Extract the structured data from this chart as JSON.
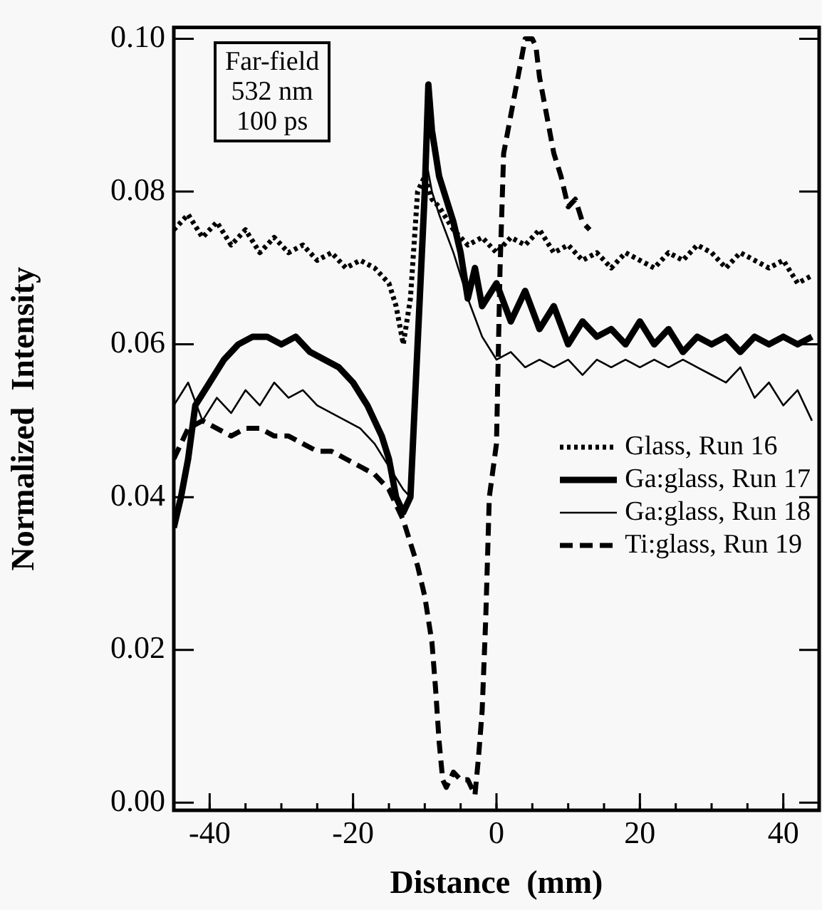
{
  "chart_data": {
    "type": "line",
    "xlabel": "Distance  (mm)",
    "ylabel": "Normalized  Intensity",
    "annotations": [
      "Far-field",
      "532 nm",
      "100 ps"
    ],
    "xlim": [
      -45,
      45
    ],
    "xticks": [
      -40,
      -20,
      0,
      20,
      40
    ],
    "ylim": [
      -0.001,
      0.1015
    ],
    "yticks": [
      {
        "value": 0,
        "label": "0.00"
      },
      {
        "value": 0.02,
        "label": "0.02"
      },
      {
        "value": 0.04,
        "label": "0.04"
      },
      {
        "value": 0.06,
        "label": "0.06"
      },
      {
        "value": 0.08,
        "label": "0.08"
      },
      {
        "value": 0.1,
        "label": "0.10"
      }
    ],
    "grid": false,
    "legend": "right",
    "marker": "none",
    "series": [
      {
        "name": "Glass, Run 16",
        "color": "#000000",
        "line_style": "dotted",
        "x": [
          -45,
          -43,
          -41,
          -39,
          -37,
          -35,
          -33,
          -31,
          -29,
          -27,
          -25,
          -23,
          -21,
          -19,
          -17,
          -15,
          -14,
          -13,
          -12,
          -11,
          -10,
          -9,
          -8,
          -6,
          -4,
          -2,
          0,
          2,
          4,
          6,
          8,
          10,
          12,
          14,
          16,
          18,
          20,
          22,
          24,
          26,
          28,
          30,
          32,
          34,
          36,
          38,
          40,
          42,
          44
        ],
        "values": [
          0.075,
          0.077,
          0.074,
          0.076,
          0.073,
          0.075,
          0.072,
          0.074,
          0.072,
          0.073,
          0.071,
          0.072,
          0.07,
          0.071,
          0.07,
          0.068,
          0.065,
          0.06,
          0.066,
          0.08,
          0.082,
          0.079,
          0.078,
          0.075,
          0.073,
          0.074,
          0.072,
          0.074,
          0.073,
          0.075,
          0.072,
          0.073,
          0.071,
          0.072,
          0.07,
          0.072,
          0.071,
          0.07,
          0.072,
          0.071,
          0.073,
          0.072,
          0.07,
          0.072,
          0.071,
          0.07,
          0.071,
          0.068,
          0.069
        ]
      },
      {
        "name": "Ga:glass, Run 17",
        "color": "#000000",
        "line_style": "solid",
        "x": [
          -45,
          -44,
          -43,
          -42,
          -40,
          -38,
          -36,
          -34,
          -32,
          -30,
          -28,
          -26,
          -24,
          -22,
          -20,
          -18,
          -16,
          -15,
          -14,
          -13,
          -12,
          -11,
          -10,
          -9.5,
          -9,
          -8,
          -7,
          -6,
          -5,
          -4,
          -3,
          -2,
          0,
          2,
          4,
          6,
          8,
          10,
          12,
          14,
          16,
          18,
          20,
          22,
          24,
          26,
          28,
          30,
          32,
          34,
          36,
          38,
          40,
          42,
          44
        ],
        "values": [
          0.036,
          0.04,
          0.045,
          0.052,
          0.055,
          0.058,
          0.06,
          0.061,
          0.061,
          0.06,
          0.061,
          0.059,
          0.058,
          0.057,
          0.055,
          0.052,
          0.048,
          0.045,
          0.04,
          0.038,
          0.04,
          0.06,
          0.08,
          0.094,
          0.088,
          0.082,
          0.079,
          0.076,
          0.072,
          0.066,
          0.07,
          0.065,
          0.068,
          0.063,
          0.067,
          0.062,
          0.065,
          0.06,
          0.063,
          0.061,
          0.062,
          0.06,
          0.063,
          0.06,
          0.062,
          0.059,
          0.061,
          0.06,
          0.061,
          0.059,
          0.061,
          0.06,
          0.061,
          0.06,
          0.061
        ]
      },
      {
        "name": "Ga:glass, Run 18",
        "color": "#000000",
        "line_style": "solid",
        "x": [
          -45,
          -43,
          -41,
          -39,
          -37,
          -35,
          -33,
          -31,
          -29,
          -27,
          -25,
          -23,
          -21,
          -19,
          -17,
          -15,
          -13,
          -12,
          -11,
          -10,
          -9,
          -8,
          -6,
          -4,
          -2,
          0,
          2,
          4,
          6,
          8,
          10,
          12,
          14,
          16,
          18,
          20,
          22,
          24,
          26,
          28,
          30,
          32,
          34,
          36,
          38,
          40,
          42,
          44
        ],
        "values": [
          0.052,
          0.055,
          0.05,
          0.053,
          0.051,
          0.054,
          0.052,
          0.055,
          0.053,
          0.054,
          0.052,
          0.051,
          0.05,
          0.049,
          0.047,
          0.044,
          0.041,
          0.04,
          0.06,
          0.085,
          0.08,
          0.077,
          0.072,
          0.066,
          0.061,
          0.058,
          0.059,
          0.057,
          0.058,
          0.057,
          0.058,
          0.056,
          0.058,
          0.057,
          0.058,
          0.057,
          0.058,
          0.057,
          0.058,
          0.057,
          0.056,
          0.055,
          0.057,
          0.053,
          0.055,
          0.052,
          0.054,
          0.05
        ]
      },
      {
        "name": "Ti:glass, Run 19",
        "color": "#000000",
        "line_style": "dashed",
        "x": [
          -45,
          -43,
          -41,
          -39,
          -37,
          -35,
          -33,
          -31,
          -29,
          -27,
          -25,
          -23,
          -21,
          -19,
          -17,
          -15,
          -13,
          -11,
          -10,
          -9,
          -8.5,
          -8,
          -7.5,
          -7,
          -6,
          -5,
          -4,
          -3,
          -2.5,
          -2,
          -1.5,
          -1,
          0,
          0.5,
          1,
          2,
          3,
          4,
          5,
          5.5,
          6,
          7,
          8,
          9,
          10,
          11,
          12,
          13
        ],
        "values": [
          0.045,
          0.049,
          0.05,
          0.049,
          0.048,
          0.049,
          0.049,
          0.048,
          0.048,
          0.047,
          0.046,
          0.046,
          0.045,
          0.044,
          0.043,
          0.041,
          0.037,
          0.031,
          0.027,
          0.021,
          0.015,
          0.008,
          0.003,
          0.002,
          0.004,
          0.003,
          0.003,
          0.001,
          0.006,
          0.012,
          0.024,
          0.04,
          0.047,
          0.07,
          0.085,
          0.09,
          0.095,
          0.1,
          0.1,
          0.099,
          0.095,
          0.09,
          0.085,
          0.082,
          0.078,
          0.079,
          0.076,
          0.075
        ]
      }
    ]
  }
}
